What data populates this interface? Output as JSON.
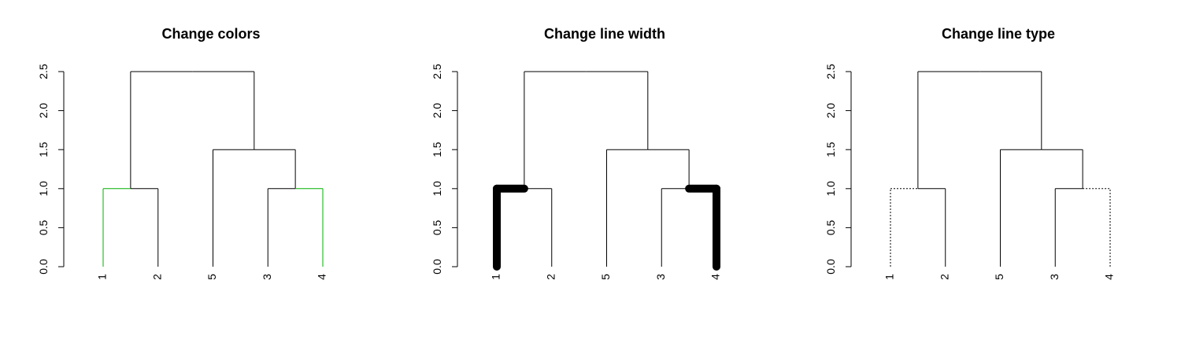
{
  "chart_data": [
    {
      "type": "dendrogram",
      "title": "Change colors",
      "leaf_order": [
        "1",
        "2",
        "5",
        "3",
        "4"
      ],
      "ylim": [
        0,
        2.5
      ],
      "yticks": [
        "0.0",
        "0.5",
        "1.0",
        "1.5",
        "2.0",
        "2.5"
      ],
      "merges": [
        {
          "left": "1",
          "right": "2",
          "height": 1.0
        },
        {
          "left": "3",
          "right": "4",
          "height": 1.0
        },
        {
          "left": "5",
          "right": "m2",
          "height": 1.5
        },
        {
          "left": "m1",
          "right": "m3",
          "height": 2.5
        }
      ],
      "highlight_leaves": [
        "1",
        "4"
      ],
      "style": {
        "base_color": "#000000",
        "highlight_color": "#00b000",
        "base_width": 1,
        "highlight_width": 1,
        "highlight_dash": "none"
      }
    },
    {
      "type": "dendrogram",
      "title": "Change line width",
      "leaf_order": [
        "1",
        "2",
        "5",
        "3",
        "4"
      ],
      "ylim": [
        0,
        2.5
      ],
      "yticks": [
        "0.0",
        "0.5",
        "1.0",
        "1.5",
        "2.0",
        "2.5"
      ],
      "merges": [
        {
          "left": "1",
          "right": "2",
          "height": 1.0
        },
        {
          "left": "3",
          "right": "4",
          "height": 1.0
        },
        {
          "left": "5",
          "right": "m2",
          "height": 1.5
        },
        {
          "left": "m1",
          "right": "m3",
          "height": 2.5
        }
      ],
      "highlight_leaves": [
        "1",
        "4"
      ],
      "style": {
        "base_color": "#000000",
        "highlight_color": "#000000",
        "base_width": 1,
        "highlight_width": 10,
        "highlight_dash": "none"
      }
    },
    {
      "type": "dendrogram",
      "title": "Change line type",
      "leaf_order": [
        "1",
        "2",
        "5",
        "3",
        "4"
      ],
      "ylim": [
        0,
        2.5
      ],
      "yticks": [
        "0.0",
        "0.5",
        "1.0",
        "1.5",
        "2.0",
        "2.5"
      ],
      "merges": [
        {
          "left": "1",
          "right": "2",
          "height": 1.0
        },
        {
          "left": "3",
          "right": "4",
          "height": 1.0
        },
        {
          "left": "5",
          "right": "m2",
          "height": 1.5
        },
        {
          "left": "m1",
          "right": "m3",
          "height": 2.5
        }
      ],
      "highlight_leaves": [
        "1",
        "4"
      ],
      "style": {
        "base_color": "#000000",
        "highlight_color": "#000000",
        "base_width": 1,
        "highlight_width": 1,
        "highlight_dash": "2,2"
      }
    }
  ]
}
